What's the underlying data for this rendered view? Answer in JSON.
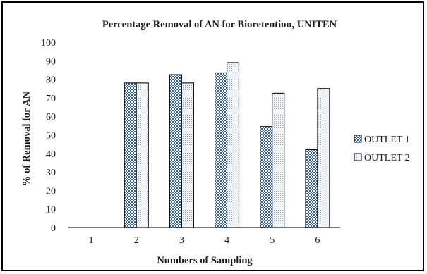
{
  "chart_data": {
    "type": "bar",
    "title": "Percentage Removal of AN for Bioretention, UNITEN",
    "xlabel": "Numbers of Sampling",
    "ylabel": "% of Removal for AN",
    "categories": [
      "1",
      "2",
      "3",
      "4",
      "5",
      "6"
    ],
    "ylim": [
      0,
      100
    ],
    "yticks": [
      0,
      10,
      20,
      30,
      40,
      50,
      60,
      70,
      80,
      90,
      100
    ],
    "grid": false,
    "legend_position": "right",
    "series": [
      {
        "name": "OUTLET 1",
        "values": [
          null,
          78,
          82.5,
          83.5,
          54.5,
          42
        ],
        "color": "#2f5f9e",
        "pattern": "checkered"
      },
      {
        "name": "OUTLET 2",
        "values": [
          null,
          78,
          78,
          89,
          72.5,
          75
        ],
        "color": "#8ea9c8",
        "pattern": "dotted"
      }
    ]
  }
}
